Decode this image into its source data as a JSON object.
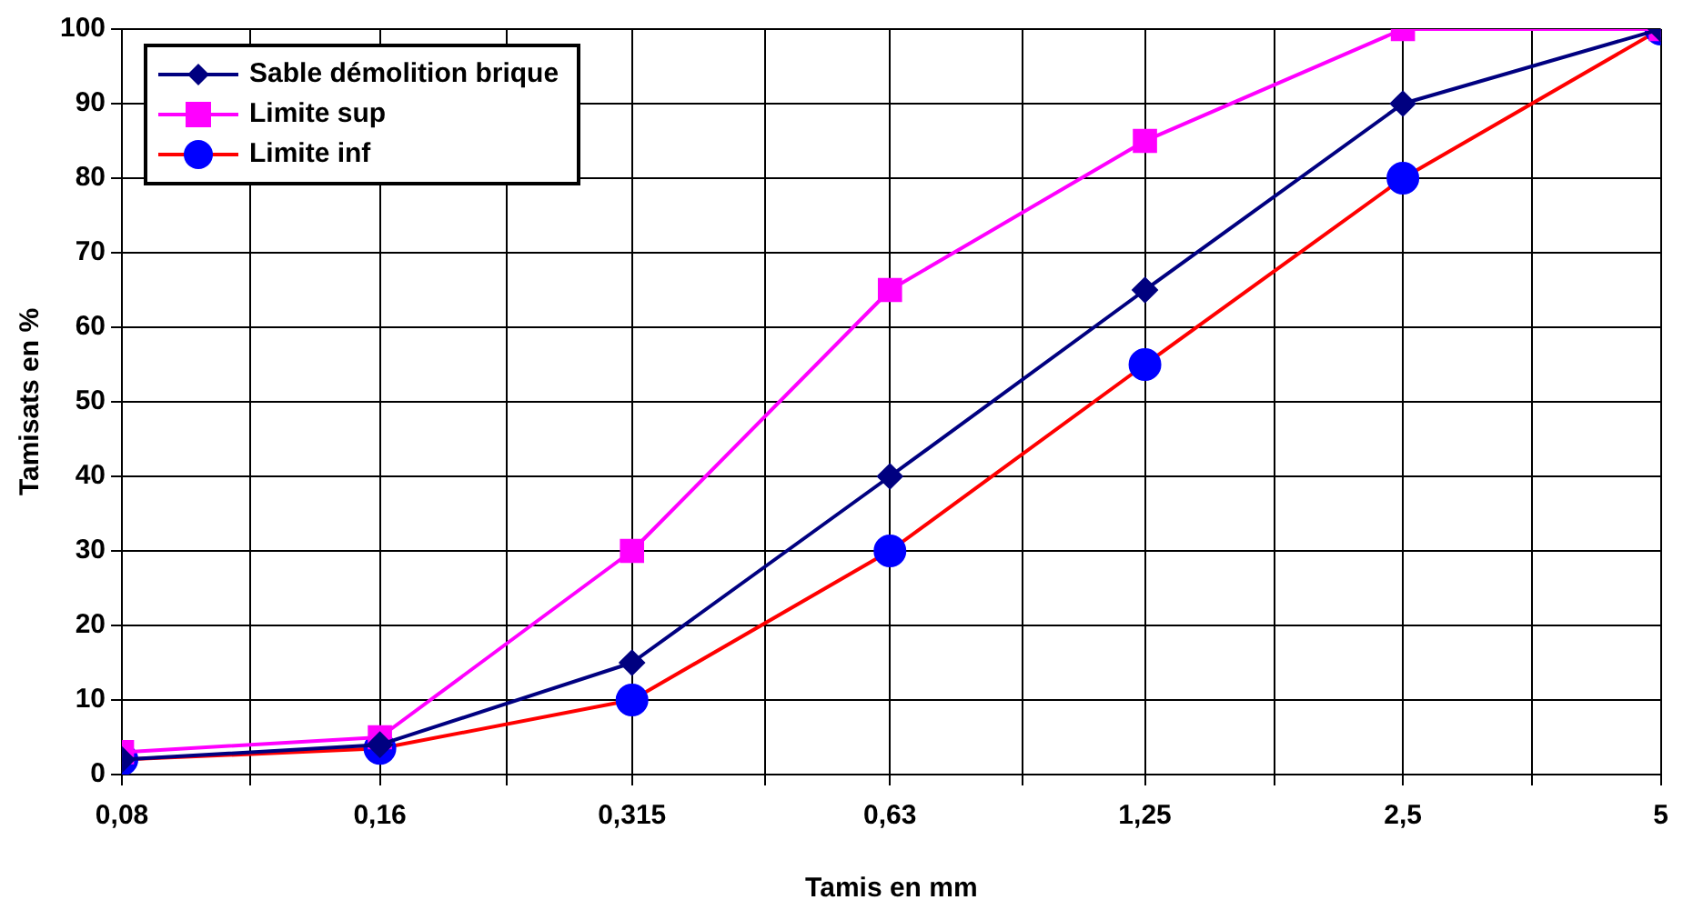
{
  "chart_data": {
    "type": "line",
    "xlabel": "Tamis en mm",
    "ylabel": "Tamisats en %",
    "x": [
      0.08,
      0.16,
      0.315,
      0.63,
      1.25,
      2.5,
      5
    ],
    "series": [
      {
        "name": "Sable démolition brique",
        "color": "#000080",
        "marker": "diamond",
        "values": [
          2,
          4,
          15,
          40,
          65,
          90,
          100
        ]
      },
      {
        "name": "Limite sup",
        "color": "#ff00ff",
        "marker": "square",
        "values": [
          3,
          5,
          30,
          65,
          85,
          100,
          100
        ]
      },
      {
        "name": "Limite inf",
        "color": "#ff0000",
        "colors": [
          "#0000ff",
          "#0000ff",
          "#0000ff",
          "#0000ff",
          "#0000ff",
          "#0000ff",
          "#0000ff"
        ],
        "marker": "circle",
        "values": [
          2,
          3.5,
          10,
          30,
          55,
          80,
          100
        ]
      }
    ],
    "log": "x",
    "xlim": [
      0.08,
      5
    ],
    "xticks": [
      {
        "value": 0.08,
        "label": "0,08"
      },
      {
        "value": 0.113,
        "label": null
      },
      {
        "value": 0.16,
        "label": "0,16"
      },
      {
        "value": 0.225,
        "label": null
      },
      {
        "value": 0.315,
        "label": "0,315"
      },
      {
        "value": 0.45,
        "label": null
      },
      {
        "value": 0.63,
        "label": "0,63"
      },
      {
        "value": 0.9,
        "label": null
      },
      {
        "value": 1.25,
        "label": "1,25"
      },
      {
        "value": 1.77,
        "label": null
      },
      {
        "value": 2.5,
        "label": "2,5"
      },
      {
        "value": 3.54,
        "label": null
      },
      5
    ],
    "ylim": [
      0,
      100
    ],
    "yticks": [
      0,
      10,
      20,
      30,
      40,
      50,
      60,
      70,
      80,
      90,
      100
    ],
    "grid": true,
    "legend": "top left"
  }
}
